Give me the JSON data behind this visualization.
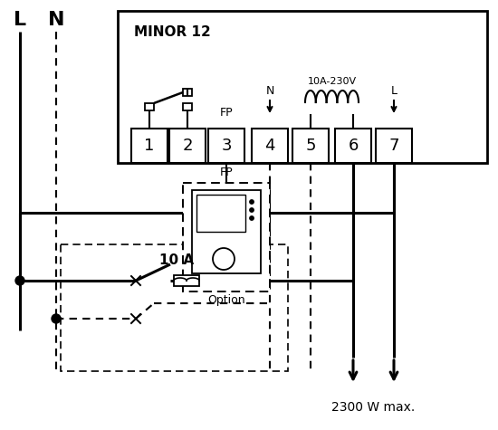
{
  "title": "MINOR 12",
  "bg_color": "#ffffff",
  "fg_color": "#000000",
  "terminals": [
    "1",
    "2",
    "3",
    "4",
    "5",
    "6",
    "7"
  ],
  "label_L": "L",
  "label_N": "N",
  "label_FP_top": "FP",
  "label_FP_mid": "FP",
  "label_N_top": "N",
  "label_10A230V": "10A-230V",
  "label_L_top": "L",
  "label_10A": "10 A",
  "label_option": "Option",
  "label_2300": "2300 W max."
}
